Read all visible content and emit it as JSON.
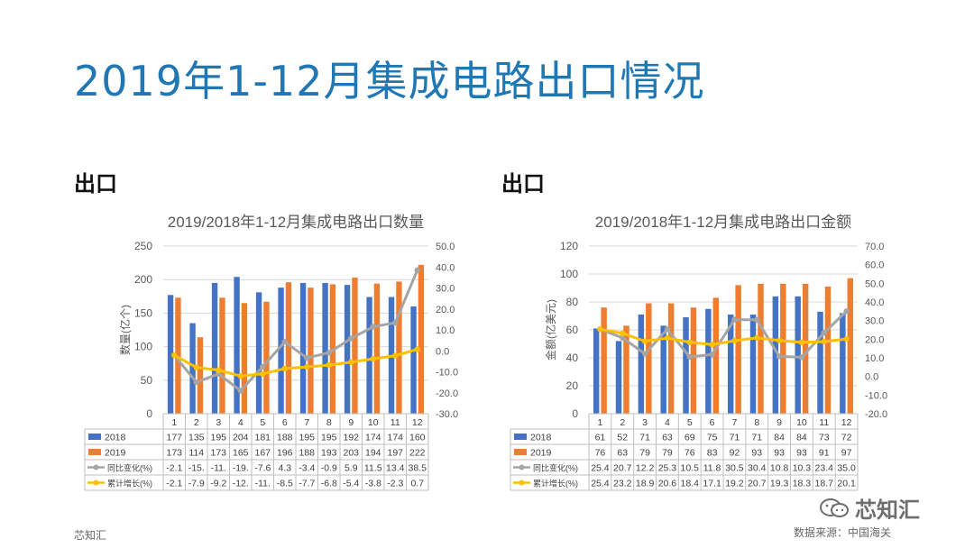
{
  "title": "2019年1-12月集成电路出口情况",
  "left_heading": "出口",
  "right_heading": "出口",
  "footer_left": "芯知汇",
  "footer_right": "数据来源：中国海关",
  "watermark": "芯知汇",
  "chart_data": [
    {
      "type": "bar",
      "title": "2019/2018年1-12月集成电路出口数量",
      "ylabel": "数量(亿个)",
      "ylim": [
        0,
        250
      ],
      "y_ticks": [
        "0",
        "50",
        "100",
        "150",
        "200",
        "250"
      ],
      "y2lim": [
        -30,
        50
      ],
      "y2_ticks": [
        "-30.0",
        "-20.0",
        "-10.0",
        "0.0",
        "10.0",
        "20.0",
        "30.0",
        "40.0",
        "50.0"
      ],
      "categories": [
        "1",
        "2",
        "3",
        "4",
        "5",
        "6",
        "7",
        "8",
        "9",
        "10",
        "11",
        "12"
      ],
      "series": [
        {
          "name": "2018",
          "kind": "bar",
          "color": "#4472c4",
          "values": [
            177,
            135,
            195,
            204,
            181,
            188,
            195,
            195,
            192,
            174,
            174,
            160
          ],
          "labels": [
            "177",
            "135",
            "195",
            "204",
            "181",
            "188",
            "195",
            "195",
            "192",
            "174",
            "174",
            "160"
          ]
        },
        {
          "name": "2019",
          "kind": "bar",
          "color": "#ed7d31",
          "values": [
            173,
            114,
            173,
            165,
            167,
            196,
            188,
            193,
            203,
            194,
            197,
            222
          ],
          "labels": [
            "173",
            "114",
            "173",
            "165",
            "167",
            "196",
            "188",
            "193",
            "203",
            "194",
            "197",
            "222"
          ]
        },
        {
          "name": "同比变化(%)",
          "kind": "line",
          "color": "#a5a5a5",
          "axis": "right",
          "values": [
            -2.1,
            -15.0,
            -11.0,
            -19.0,
            -7.6,
            4.3,
            -3.4,
            -0.9,
            5.9,
            11.5,
            13.4,
            38.5
          ],
          "labels": [
            "-2.1",
            "-15.",
            "-11.",
            "-19.",
            "-7.6",
            "4.3",
            "-3.4",
            "-0.9",
            "5.9",
            "11.5",
            "13.4",
            "38.5"
          ]
        },
        {
          "name": "累计增长(%)",
          "kind": "line",
          "color": "#ffc000",
          "axis": "right",
          "values": [
            -2.1,
            -7.9,
            -9.2,
            -12.0,
            -11.0,
            -8.5,
            -7.7,
            -6.8,
            -5.4,
            -3.8,
            -2.3,
            0.7
          ],
          "labels": [
            "-2.1",
            "-7.9",
            "-9.2",
            "-12.",
            "-11.",
            "-8.5",
            "-7.7",
            "-6.8",
            "-5.4",
            "-3.8",
            "-2.3",
            "0.7"
          ]
        }
      ]
    },
    {
      "type": "bar",
      "title": "2019/2018年1-12月集成电路出口金额",
      "ylabel": "金额(亿美元)",
      "ylim": [
        0,
        120
      ],
      "y_ticks": [
        "0",
        "20",
        "40",
        "60",
        "80",
        "100",
        "120"
      ],
      "y2lim": [
        -20,
        70
      ],
      "y2_ticks": [
        "-20.0",
        "-10.0",
        "0.0",
        "10.0",
        "20.0",
        "30.0",
        "40.0",
        "50.0",
        "60.0",
        "70.0"
      ],
      "categories": [
        "1",
        "2",
        "3",
        "4",
        "5",
        "6",
        "7",
        "8",
        "9",
        "10",
        "11",
        "12"
      ],
      "series": [
        {
          "name": "2018",
          "kind": "bar",
          "color": "#4472c4",
          "values": [
            61,
            52,
            71,
            63,
            69,
            75,
            71,
            71,
            84,
            84,
            73,
            72
          ],
          "labels": [
            "61",
            "52",
            "71",
            "63",
            "69",
            "75",
            "71",
            "71",
            "84",
            "84",
            "73",
            "72"
          ]
        },
        {
          "name": "2019",
          "kind": "bar",
          "color": "#ed7d31",
          "values": [
            76,
            63,
            79,
            79,
            76,
            83,
            92,
            93,
            93,
            93,
            91,
            97
          ],
          "labels": [
            "76",
            "63",
            "79",
            "79",
            "76",
            "83",
            "92",
            "93",
            "93",
            "93",
            "91",
            "97"
          ]
        },
        {
          "name": "同比变化(%)",
          "kind": "line",
          "color": "#a5a5a5",
          "axis": "right",
          "values": [
            25.4,
            20.7,
            12.2,
            25.3,
            10.5,
            11.8,
            30.5,
            30.4,
            10.8,
            10.3,
            23.4,
            35.0
          ],
          "labels": [
            "25.4",
            "20.7",
            "12.2",
            "25.3",
            "10.5",
            "11.8",
            "30.5",
            "30.4",
            "10.8",
            "10.3",
            "23.4",
            "35.0"
          ]
        },
        {
          "name": "累计增长(%)",
          "kind": "line",
          "color": "#ffc000",
          "axis": "right",
          "values": [
            25.4,
            23.2,
            18.9,
            20.6,
            18.4,
            17.1,
            19.2,
            20.7,
            19.3,
            18.3,
            18.7,
            20.1
          ],
          "labels": [
            "25.4",
            "23.2",
            "18.9",
            "20.6",
            "18.4",
            "17.1",
            "19.2",
            "20.7",
            "19.3",
            "18.3",
            "18.7",
            "20.1"
          ]
        }
      ]
    }
  ]
}
